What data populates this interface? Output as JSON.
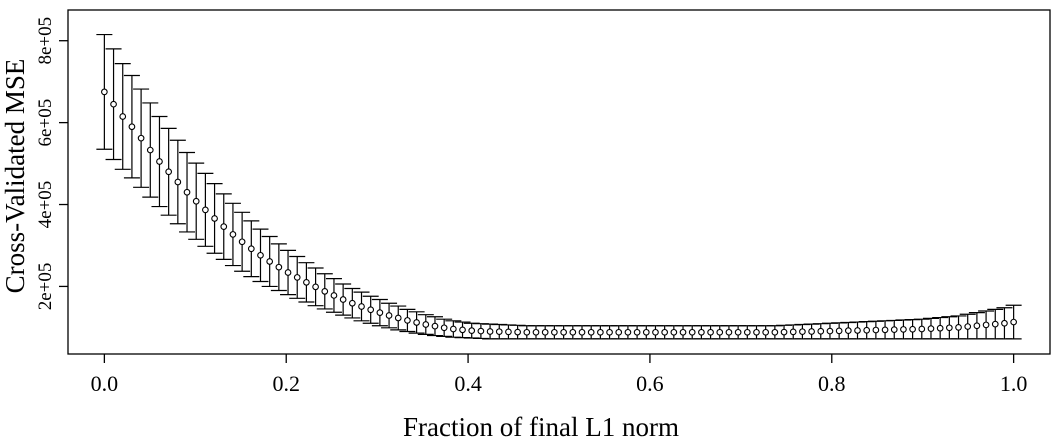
{
  "chart_data": {
    "type": "scatter",
    "title": "",
    "xlabel": "Fraction of final L1 norm",
    "ylabel": "Cross-Validated MSE",
    "xlim": [
      -0.04,
      1.04
    ],
    "ylim": [
      35000,
      875000
    ],
    "x_ticks": [
      0.0,
      0.2,
      0.4,
      0.6,
      0.8,
      1.0
    ],
    "x_tick_labels": [
      "0.0",
      "0.2",
      "0.4",
      "0.6",
      "0.8",
      "1.0"
    ],
    "y_ticks": [
      200000,
      400000,
      600000,
      800000
    ],
    "y_tick_labels": [
      "2e+05",
      "4e+05",
      "6e+05",
      "8e+05"
    ],
    "grid": false,
    "legend": "none",
    "series": [
      {
        "x": [
          0.0,
          0.0101,
          0.0202,
          0.0303,
          0.0404,
          0.0505,
          0.0606,
          0.0707,
          0.0808,
          0.0909,
          0.101,
          0.1111,
          0.1212,
          0.1313,
          0.1414,
          0.1515,
          0.1616,
          0.1717,
          0.1818,
          0.1919,
          0.202,
          0.2121,
          0.2222,
          0.2323,
          0.2424,
          0.2525,
          0.2626,
          0.2727,
          0.2828,
          0.2929,
          0.303,
          0.3131,
          0.3232,
          0.3333,
          0.3434,
          0.3535,
          0.3636,
          0.3737,
          0.3838,
          0.3939,
          0.404,
          0.4141,
          0.4242,
          0.4343,
          0.4444,
          0.4545,
          0.4646,
          0.4747,
          0.4848,
          0.4949,
          0.5051,
          0.5152,
          0.5253,
          0.5354,
          0.5455,
          0.5556,
          0.5657,
          0.5758,
          0.5859,
          0.596,
          0.6061,
          0.6162,
          0.6263,
          0.6364,
          0.6465,
          0.6566,
          0.6667,
          0.6768,
          0.6869,
          0.697,
          0.7071,
          0.7172,
          0.7273,
          0.7374,
          0.7475,
          0.7576,
          0.7677,
          0.7778,
          0.7879,
          0.798,
          0.8081,
          0.8182,
          0.8283,
          0.8384,
          0.8485,
          0.8586,
          0.8687,
          0.8788,
          0.8889,
          0.899,
          0.9091,
          0.9192,
          0.9293,
          0.9394,
          0.9495,
          0.9596,
          0.9697,
          0.9798,
          0.9899,
          1.0
        ],
        "y": [
          675000,
          645000,
          615000,
          590000,
          562000,
          533000,
          505000,
          480000,
          455000,
          430000,
          408000,
          387000,
          366000,
          346000,
          327000,
          309000,
          292000,
          276000,
          261000,
          247000,
          234000,
          222000,
          210000,
          199000,
          188000,
          178000,
          168000,
          159000,
          151000,
          143000,
          136000,
          129000,
          123000,
          117000,
          112000,
          107000,
          103000,
          99000,
          96000,
          94000,
          92000,
          91000,
          90000,
          89500,
          89000,
          88500,
          88000,
          88000,
          88000,
          88000,
          88000,
          88000,
          88000,
          88000,
          88000,
          88000,
          88000,
          88000,
          88000,
          88000,
          88000,
          88000,
          88000,
          88000,
          88000,
          88000,
          88000,
          88000,
          88000,
          88000,
          88000,
          88000,
          88000,
          88000,
          88500,
          89000,
          89500,
          90000,
          90500,
          91000,
          91500,
          92000,
          92500,
          93000,
          93500,
          94000,
          94500,
          95000,
          95500,
          96000,
          97000,
          98000,
          99000,
          100000,
          102000,
          104000,
          106000,
          108000,
          110000,
          113000
        ],
        "lower": [
          535000,
          510000,
          486000,
          465000,
          442000,
          418000,
          395000,
          374000,
          353000,
          333000,
          315000,
          298000,
          281000,
          266000,
          251000,
          237000,
          224000,
          212000,
          200000,
          190000,
          180000,
          171000,
          162000,
          153000,
          145000,
          137000,
          130000,
          123000,
          116000,
          110000,
          104000,
          99000,
          94000,
          90000,
          86000,
          83000,
          80000,
          78000,
          76000,
          75000,
          74000,
          73000,
          72000,
          72000,
          72000,
          72000,
          72000,
          72000,
          72000,
          72000,
          72000,
          72000,
          72000,
          72000,
          72000,
          72000,
          72000,
          72000,
          72000,
          72000,
          72000,
          72000,
          72000,
          72000,
          72000,
          72000,
          72000,
          72000,
          72000,
          72000,
          72000,
          72000,
          72000,
          72000,
          72000,
          72000,
          72000,
          72000,
          72000,
          72000,
          72000,
          72000,
          72000,
          72000,
          72000,
          72000,
          72000,
          72000,
          72000,
          72000,
          72000,
          72000,
          72000,
          72000,
          72000,
          72000,
          72000,
          72000,
          72000,
          72000
        ],
        "upper": [
          815000,
          780000,
          744000,
          715000,
          682000,
          648000,
          615000,
          586000,
          557000,
          527000,
          501000,
          476000,
          451000,
          426000,
          403000,
          381000,
          360000,
          340000,
          322000,
          304000,
          288000,
          273000,
          258000,
          245000,
          231000,
          219000,
          206000,
          195000,
          186000,
          176000,
          168000,
          159000,
          152000,
          144000,
          138000,
          131000,
          126000,
          120000,
          116000,
          113000,
          110000,
          109000,
          108000,
          107000,
          106000,
          105000,
          104000,
          104000,
          104000,
          104000,
          104000,
          104000,
          104000,
          104000,
          104000,
          104000,
          104000,
          104000,
          104000,
          104000,
          104000,
          104000,
          104000,
          104000,
          104000,
          104000,
          104000,
          104000,
          104000,
          104000,
          104000,
          104000,
          104000,
          104000,
          105000,
          106000,
          107000,
          108000,
          109000,
          110000,
          111000,
          112000,
          113000,
          114000,
          115000,
          116000,
          117000,
          118000,
          119000,
          120000,
          122000,
          124000,
          126000,
          128000,
          132000,
          136000,
          140000,
          144000,
          148000,
          154000
        ]
      }
    ]
  }
}
